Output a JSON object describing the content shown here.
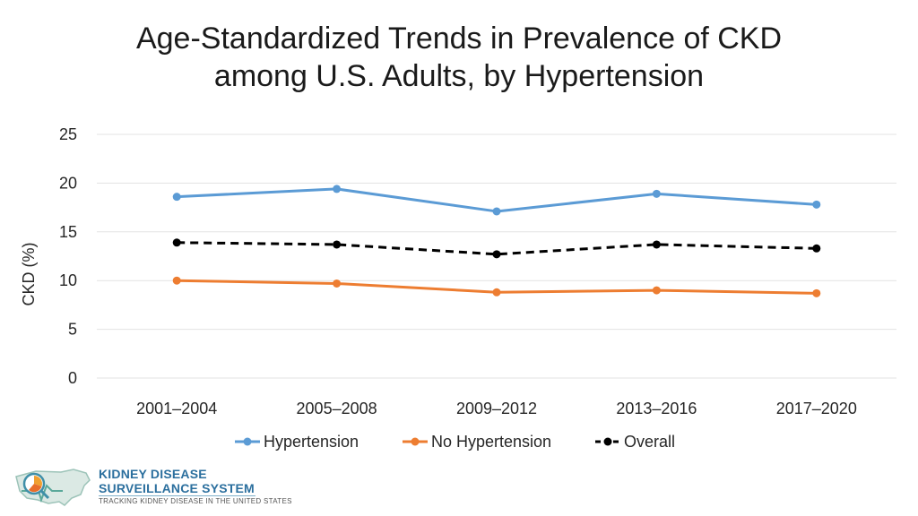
{
  "title": {
    "line1": "Age-Standardized Trends in Prevalence of CKD",
    "line2": "among U.S. Adults, by Hypertension"
  },
  "colors": {
    "hypertension": "#5b9bd5",
    "no_hypertension": "#ed7d31",
    "overall": "#000000"
  },
  "chart_data": {
    "type": "line",
    "title": "Age-Standardized Trends in Prevalence of CKD among U.S. Adults, by Hypertension",
    "xlabel": "",
    "ylabel": "CKD (%)",
    "ylim": [
      0,
      25
    ],
    "yticks": [
      "0",
      "5",
      "10",
      "15",
      "20",
      "25"
    ],
    "ytick_values": [
      0,
      5,
      10,
      15,
      20,
      25
    ],
    "categories": [
      "2001–2004",
      "2005–2008",
      "2009–2012",
      "2013–2016",
      "2017–2020"
    ],
    "grid": true,
    "legend": "bottom",
    "series": [
      {
        "key": "hypertension",
        "name": "Hypertension",
        "values": [
          18.6,
          19.4,
          17.1,
          18.9,
          17.8
        ],
        "style": "solid"
      },
      {
        "key": "no_hypertension",
        "name": "No Hypertension",
        "values": [
          10.0,
          9.7,
          8.8,
          9.0,
          8.7
        ],
        "style": "solid"
      },
      {
        "key": "overall",
        "name": "Overall",
        "values": [
          13.9,
          13.7,
          12.7,
          13.7,
          13.3
        ],
        "style": "dashed"
      }
    ]
  },
  "logo": {
    "line1": "KIDNEY DISEASE",
    "line2": "SURVEILLANCE SYSTEM",
    "tagline": "TRACKING KIDNEY DISEASE IN THE UNITED STATES"
  }
}
